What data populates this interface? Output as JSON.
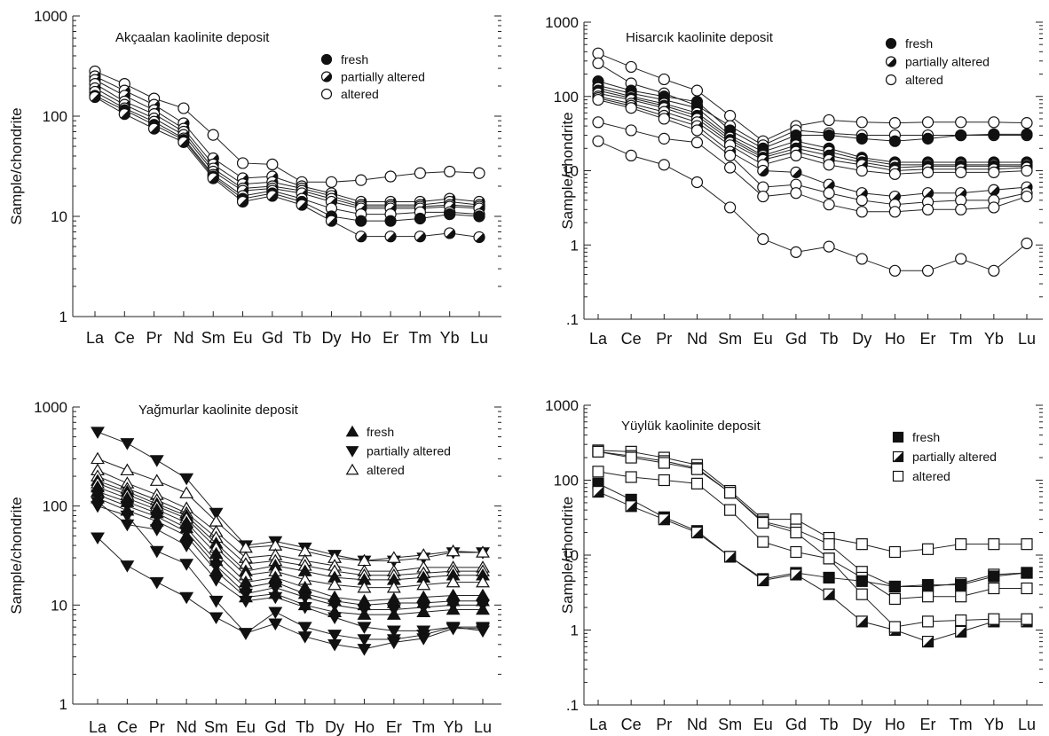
{
  "chart_data": [
    {
      "type": "line",
      "marker_shape": "circle",
      "title": "Akçaalan kaolinite deposit",
      "xlabel": "",
      "ylabel": "Sample/chondrite",
      "yscale": "log",
      "ylim": [
        1,
        1000
      ],
      "yticks": [
        "1",
        "10",
        "100",
        "1000"
      ],
      "categories": [
        "La",
        "Ce",
        "Pr",
        "Nd",
        "Sm",
        "Eu",
        "Gd",
        "Tb",
        "Dy",
        "Ho",
        "Er",
        "Tm",
        "Yb",
        "Lu"
      ],
      "legend_position": "top-right",
      "legend": [
        {
          "label": "fresh",
          "style": "filled"
        },
        {
          "label": "partially altered",
          "style": "half"
        },
        {
          "label": "altered",
          "style": "open"
        }
      ],
      "series": [
        {
          "style": "open",
          "values": [
            280,
            210,
            150,
            120,
            65,
            34,
            33,
            22,
            22,
            23,
            25,
            27,
            28,
            27
          ]
        },
        {
          "style": "half",
          "values": [
            250,
            180,
            130,
            85,
            38,
            24,
            25,
            20,
            17,
            14,
            14,
            14,
            15,
            14
          ]
        },
        {
          "style": "half",
          "values": [
            230,
            160,
            115,
            75,
            33,
            21,
            22,
            19,
            16,
            13,
            13,
            13,
            14,
            13
          ]
        },
        {
          "style": "open",
          "values": [
            210,
            140,
            105,
            70,
            30,
            19,
            20,
            18,
            15,
            12.5,
            12.5,
            12.5,
            13,
            12.5
          ]
        },
        {
          "style": "half",
          "values": [
            190,
            130,
            95,
            65,
            28,
            18,
            19,
            17,
            14,
            12,
            12,
            12,
            12.5,
            12
          ]
        },
        {
          "style": "open",
          "values": [
            175,
            120,
            88,
            60,
            26,
            16,
            18,
            15,
            12,
            10.5,
            10.5,
            11,
            11,
            10.5
          ]
        },
        {
          "style": "filled",
          "values": [
            160,
            115,
            82,
            58,
            25,
            15,
            17,
            14,
            10,
            9,
            9,
            9.5,
            10.5,
            10
          ]
        },
        {
          "style": "half",
          "values": [
            155,
            105,
            75,
            55,
            24,
            14,
            16,
            13,
            9,
            6.3,
            6.3,
            6.3,
            6.8,
            6.2
          ]
        }
      ]
    },
    {
      "type": "line",
      "marker_shape": "circle",
      "title": "Hisarcık kaolinite deposit",
      "xlabel": "",
      "ylabel": "Sample/chondrite",
      "yscale": "log",
      "ylim": [
        0.1,
        1000
      ],
      "yticks": [
        ".1",
        "1",
        "10",
        "100",
        "1000"
      ],
      "categories": [
        "La",
        "Ce",
        "Pr",
        "Nd",
        "Sm",
        "Eu",
        "Gd",
        "Tb",
        "Dy",
        "Ho",
        "Er",
        "Tm",
        "Yb",
        "Lu"
      ],
      "legend_position": "top-right",
      "legend": [
        {
          "label": "fresh",
          "style": "filled"
        },
        {
          "label": "partially altered",
          "style": "half"
        },
        {
          "label": "altered",
          "style": "open"
        }
      ],
      "series": [
        {
          "style": "open",
          "values": [
            380,
            250,
            170,
            120,
            55,
            25,
            40,
            48,
            45,
            44,
            45,
            45,
            45,
            44
          ]
        },
        {
          "style": "open",
          "values": [
            280,
            150,
            110,
            75,
            40,
            22,
            35,
            32,
            30,
            30,
            30,
            30,
            30,
            30
          ]
        },
        {
          "style": "filled",
          "values": [
            160,
            120,
            100,
            85,
            35,
            20,
            30,
            30,
            27,
            25,
            27,
            30,
            31,
            31
          ]
        },
        {
          "style": "filled",
          "values": [
            140,
            110,
            90,
            70,
            30,
            18,
            25,
            20,
            15,
            13,
            13,
            13,
            13,
            13
          ]
        },
        {
          "style": "half",
          "values": [
            130,
            100,
            80,
            60,
            28,
            16,
            22,
            18,
            14,
            12,
            12,
            12,
            12,
            12
          ]
        },
        {
          "style": "filled",
          "values": [
            120,
            95,
            75,
            55,
            26,
            15,
            20,
            16,
            13,
            11,
            11.5,
            11.5,
            11.5,
            11.5
          ]
        },
        {
          "style": "half",
          "values": [
            110,
            90,
            70,
            50,
            24,
            14,
            18,
            14,
            12,
            10,
            10.5,
            10.5,
            10.5,
            11
          ]
        },
        {
          "style": "open",
          "values": [
            100,
            80,
            62,
            45,
            22,
            12,
            16,
            12,
            10,
            9,
            9.5,
            9.5,
            9.5,
            10
          ]
        },
        {
          "style": "half",
          "values": [
            95,
            75,
            55,
            40,
            18,
            10,
            9.5,
            6.5,
            5,
            4.5,
            5,
            5,
            5.5,
            6
          ]
        },
        {
          "style": "open",
          "values": [
            90,
            70,
            50,
            35,
            16,
            6,
            6.5,
            5,
            4,
            3.5,
            3.8,
            4,
            4,
            5
          ]
        },
        {
          "style": "open",
          "values": [
            45,
            35,
            27,
            24,
            11,
            4.5,
            5,
            3.5,
            2.8,
            2.8,
            3,
            3,
            3.2,
            4.5
          ]
        },
        {
          "style": "open",
          "values": [
            25,
            16,
            12,
            7,
            3.2,
            1.2,
            0.8,
            0.95,
            0.65,
            0.45,
            0.45,
            0.65,
            0.45,
            1.05
          ]
        }
      ]
    },
    {
      "type": "line",
      "marker_shape": "triangle",
      "title": "Yağmurlar kaolinite deposit",
      "xlabel": "",
      "ylabel": "Sample/chondrite",
      "yscale": "log",
      "ylim": [
        1,
        1000
      ],
      "yticks": [
        "1",
        "10",
        "100",
        "1000"
      ],
      "categories": [
        "La",
        "Ce",
        "Pr",
        "Nd",
        "Sm",
        "Eu",
        "Gd",
        "Tb",
        "Dy",
        "Ho",
        "Er",
        "Tm",
        "Yb",
        "Lu"
      ],
      "legend_position": "top-right",
      "legend": [
        {
          "label": "fresh",
          "style": "filled-up"
        },
        {
          "label": "partially altered",
          "style": "filled-down"
        },
        {
          "label": "altered",
          "style": "open-up"
        }
      ],
      "series": [
        {
          "style": "filled-down",
          "values": [
            560,
            430,
            290,
            190,
            85,
            40,
            44,
            38,
            32,
            28,
            28,
            30,
            34,
            34
          ]
        },
        {
          "style": "open-up",
          "values": [
            300,
            230,
            180,
            135,
            70,
            38,
            40,
            35,
            30,
            28,
            30,
            32,
            35,
            34
          ]
        },
        {
          "style": "open-up",
          "values": [
            230,
            170,
            130,
            95,
            55,
            30,
            32,
            28,
            25,
            22,
            22,
            24,
            24,
            24
          ]
        },
        {
          "style": "open-up",
          "values": [
            200,
            150,
            115,
            85,
            48,
            26,
            28,
            25,
            22,
            20,
            20,
            21,
            22,
            22
          ]
        },
        {
          "style": "filled-up",
          "values": [
            180,
            140,
            105,
            80,
            42,
            22,
            25,
            22,
            19,
            18,
            18,
            19,
            20,
            20
          ]
        },
        {
          "style": "open-up",
          "values": [
            170,
            130,
            100,
            75,
            38,
            20,
            22,
            18,
            16,
            15,
            15,
            16,
            17,
            17
          ]
        },
        {
          "style": "filled-up",
          "values": [
            155,
            120,
            92,
            68,
            33,
            17,
            19,
            15,
            12,
            11,
            11.5,
            12,
            12.5,
            12.5
          ]
        },
        {
          "style": "filled-up",
          "values": [
            140,
            110,
            85,
            60,
            28,
            15,
            17,
            13,
            11,
            10,
            10.5,
            10.5,
            11,
            11
          ]
        },
        {
          "style": "filled-down",
          "values": [
            130,
            100,
            78,
            55,
            25,
            13,
            15,
            12,
            10,
            9,
            9,
            9.5,
            10,
            10
          ]
        },
        {
          "style": "filled-up",
          "values": [
            120,
            90,
            70,
            50,
            22,
            12,
            13,
            10,
            8.5,
            8,
            8,
            8.5,
            9,
            9
          ]
        },
        {
          "style": "filled-down",
          "values": [
            110,
            65,
            58,
            40,
            18,
            11,
            12,
            9.5,
            7.5,
            6,
            5.5,
            5.5,
            6,
            6
          ]
        },
        {
          "style": "filled-down",
          "values": [
            48,
            25,
            17,
            12,
            7.5,
            5.2,
            8.5,
            6,
            5,
            4.5,
            4.5,
            5,
            6,
            5.5
          ]
        },
        {
          "style": "filled-down",
          "values": [
            100,
            80,
            35,
            26,
            11,
            5.2,
            6.5,
            4.8,
            4,
            3.6,
            4.2,
            4.6,
            5.8,
            5.8
          ]
        }
      ]
    },
    {
      "type": "line",
      "marker_shape": "square",
      "title": "Yüylük kaolinite deposit",
      "xlabel": "",
      "ylabel": "Sample/chondrite",
      "yscale": "log",
      "ylim": [
        0.1,
        1000
      ],
      "yticks": [
        ".1",
        "1",
        "10",
        "100",
        "1000"
      ],
      "categories": [
        "La",
        "Ce",
        "Pr",
        "Nd",
        "Sm",
        "Eu",
        "Gd",
        "Tb",
        "Dy",
        "Ho",
        "Er",
        "Tm",
        "Yb",
        "Lu"
      ],
      "legend_position": "top-right",
      "legend": [
        {
          "label": "fresh",
          "style": "filled"
        },
        {
          "label": "partially altered",
          "style": "half"
        },
        {
          "label": "altered",
          "style": "open"
        }
      ],
      "series": [
        {
          "style": "open",
          "values": [
            250,
            240,
            200,
            160,
            72,
            30,
            30,
            17,
            14,
            11,
            12,
            14,
            14,
            14
          ]
        },
        {
          "style": "open",
          "values": [
            240,
            210,
            180,
            145,
            68,
            28,
            22,
            14,
            6,
            3.8,
            3.8,
            4.2,
            5.5,
            5.8
          ]
        },
        {
          "style": "open",
          "values": [
            130,
            110,
            100,
            90,
            40,
            15,
            11,
            9,
            5,
            2.6,
            2.8,
            2.8,
            3.6,
            3.6
          ]
        },
        {
          "style": "filled",
          "values": [
            90,
            55,
            32,
            21,
            9.5,
            4.8,
            5.8,
            5,
            4.5,
            3.8,
            4,
            4,
            5.2,
            5.8
          ]
        },
        {
          "style": "half",
          "values": [
            70,
            45,
            30,
            20,
            9.5,
            4.6,
            5.5,
            3,
            1.3,
            1,
            0.7,
            0.95,
            1.3,
            1.3
          ]
        },
        {
          "style": "open",
          "values": [
            240,
            200,
            170,
            140,
            68,
            27,
            20,
            9,
            3,
            1.1,
            1.3,
            1.35,
            1.4,
            1.4
          ]
        }
      ]
    }
  ]
}
